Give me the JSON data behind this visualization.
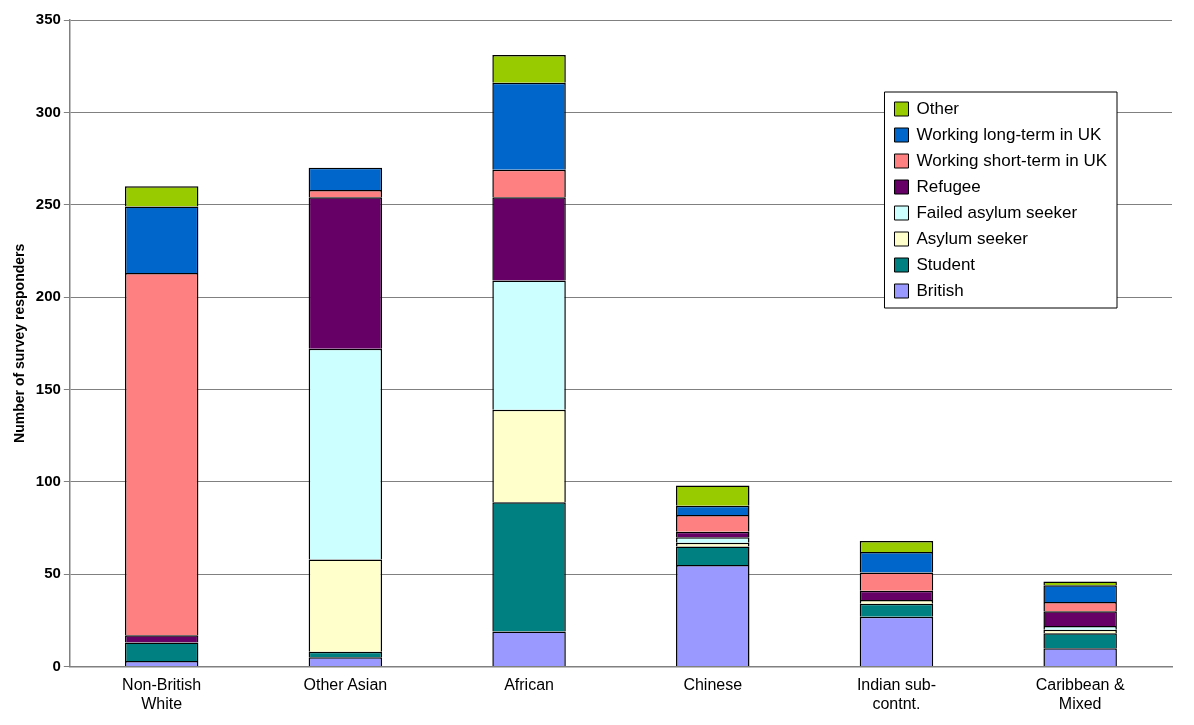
{
  "chart_data": {
    "type": "bar",
    "stacked": true,
    "ylabel": "Number of survey responders",
    "categories": [
      "Non-British White",
      "Other Asian",
      "African",
      "Chinese",
      "Indian sub-contnt.",
      "Caribbean & Mixed"
    ],
    "series": [
      {
        "name": "British",
        "color": "#9999ff",
        "values": [
          3,
          5,
          19,
          55,
          27,
          10
        ]
      },
      {
        "name": "Student",
        "color": "#008080",
        "values": [
          10,
          3,
          70,
          10,
          7,
          8
        ]
      },
      {
        "name": "Asylum seeker",
        "color": "#ffffcc",
        "values": [
          0,
          50,
          50,
          2,
          2,
          2
        ]
      },
      {
        "name": "Failed asylum seeker",
        "color": "#ccffff",
        "values": [
          0,
          114,
          70,
          3,
          0,
          2
        ]
      },
      {
        "name": "Refugee",
        "color": "#660066",
        "values": [
          4,
          82,
          45,
          3,
          5,
          8
        ]
      },
      {
        "name": "Working short-term in UK",
        "color": "#ff8080",
        "values": [
          196,
          4,
          15,
          9,
          10,
          5
        ]
      },
      {
        "name": "Working long-term in UK",
        "color": "#0066cc",
        "values": [
          36,
          12,
          47,
          5,
          11,
          9
        ]
      },
      {
        "name": "Other",
        "color": "#99cc00",
        "values": [
          11,
          0,
          15,
          11,
          6,
          2
        ]
      }
    ],
    "ylim": [
      0,
      350
    ],
    "yticks": [
      0,
      50,
      100,
      150,
      200,
      250,
      300,
      350
    ],
    "grid": "y",
    "legend": "top right"
  }
}
